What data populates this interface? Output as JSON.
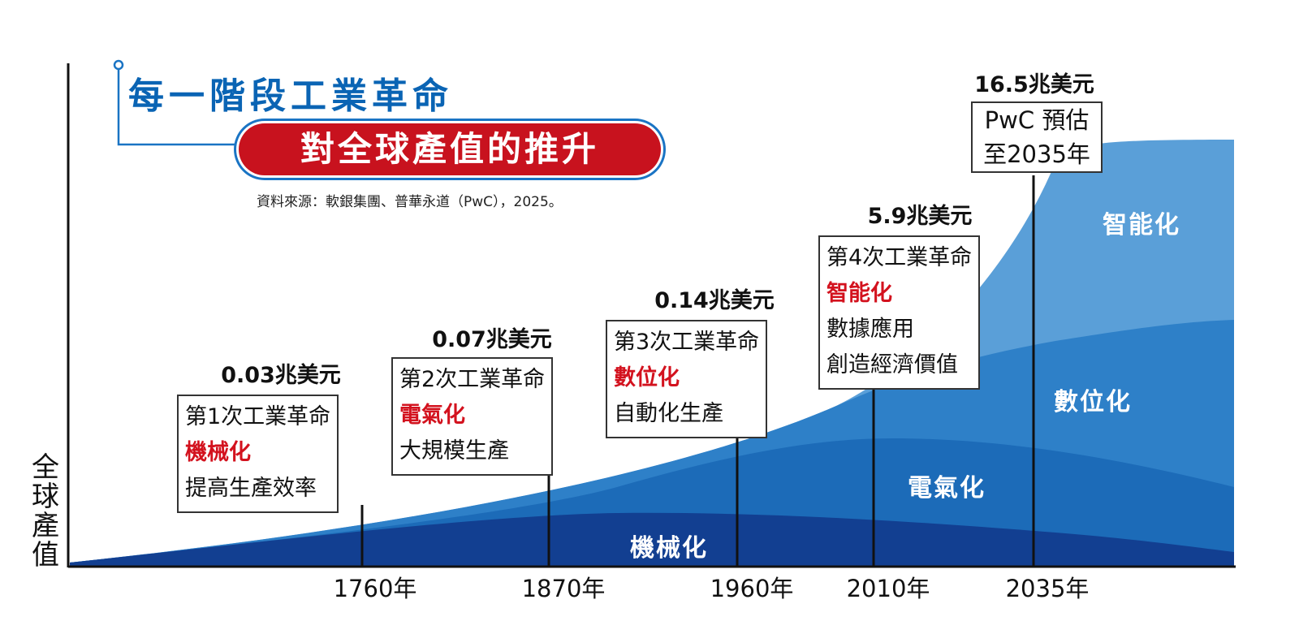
{
  "title": {
    "line1": "每一階段工業革命",
    "line2": "對全球產值的推升"
  },
  "source": "資料來源：軟銀集團、普華永道（PwC），2025。",
  "colors": {
    "title_blue": "#0a64b4",
    "title_red": "#c8121e",
    "accent_red": "#d3121e",
    "layer_mechanization": "#123f91",
    "layer_electrification": "#1c6bb8",
    "layer_digitization": "#2e80c8",
    "layer_intelligence": "#5a9fd8"
  },
  "chart_data": {
    "type": "area",
    "ylabel": "全球產值",
    "x_ticks": [
      "1760年",
      "1870年",
      "1960年",
      "2010年",
      "2035年"
    ],
    "series": [
      {
        "name": "機械化",
        "color": "#123f91"
      },
      {
        "name": "電氣化",
        "color": "#1c6bb8"
      },
      {
        "name": "數位化",
        "color": "#2e80c8"
      },
      {
        "name": "智能化",
        "color": "#5a9fd8"
      }
    ],
    "milestones": [
      {
        "year": "1760年",
        "value_label": "0.03兆美元",
        "revolution": "第1次工業革命",
        "theme": "機械化",
        "description": "提高生產效率"
      },
      {
        "year": "1870年",
        "value_label": "0.07兆美元",
        "revolution": "第2次工業革命",
        "theme": "電氣化",
        "description": "大規模生產"
      },
      {
        "year": "1960年",
        "value_label": "0.14兆美元",
        "revolution": "第3次工業革命",
        "theme": "數位化",
        "description": "自動化生產"
      },
      {
        "year": "2010年",
        "value_label": "5.9兆美元",
        "revolution": "第4次工業革命",
        "theme": "智能化",
        "description": "數據應用",
        "description2": "創造經濟價值"
      },
      {
        "year": "2035年",
        "value_label": "16.5兆美元",
        "note_line1": "PwC 預估",
        "note_line2": "至2035年"
      }
    ]
  }
}
